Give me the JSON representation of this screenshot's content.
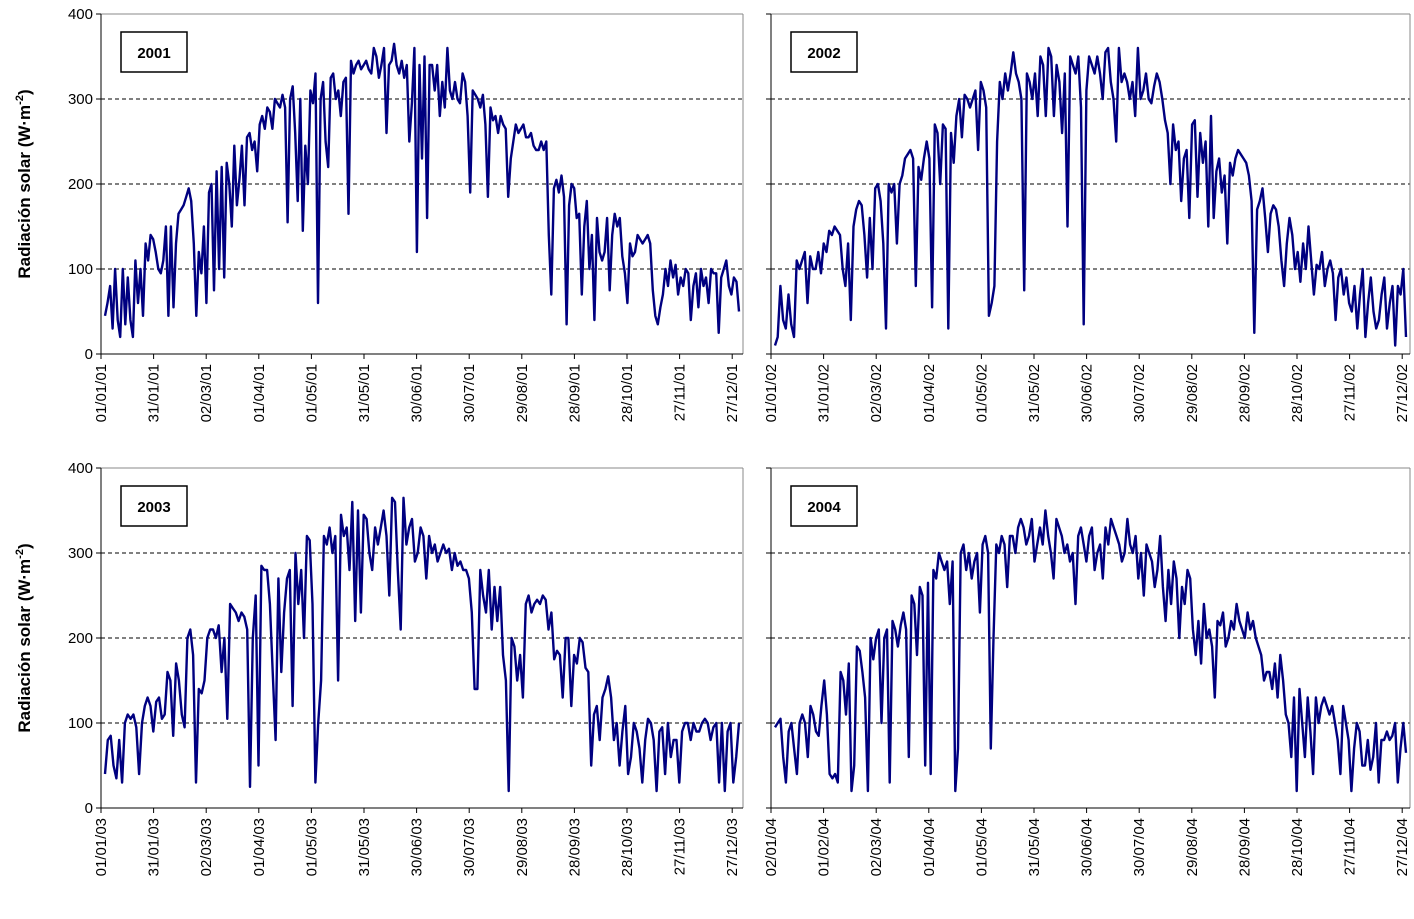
{
  "chart_data": [
    {
      "type": "line",
      "year_label": "2001",
      "ylabel": "Radiación solar (W·m",
      "ylabel_sup": "-2",
      "ylabel_close": ")",
      "ylim": [
        0,
        400
      ],
      "yticks": [
        "0",
        "100",
        "200",
        "300",
        "400"
      ],
      "x_tick_labels": [
        "01/01/01",
        "31/01/01",
        "02/03/01",
        "01/04/01",
        "01/05/01",
        "31/05/01",
        "30/06/01",
        "30/07/01",
        "29/08/01",
        "28/09/01",
        "28/10/01",
        "27/11/01",
        "27/12/01"
      ],
      "grid": "horizontal dashed",
      "series_color": "#000080",
      "series": [
        {
          "values": [
            45,
            60,
            80,
            30,
            100,
            40,
            20,
            100,
            35,
            90,
            40,
            20,
            110,
            60,
            100,
            45,
            130,
            110,
            140,
            135,
            120,
            100,
            95,
            110,
            150,
            45,
            150,
            55,
            130,
            165,
            170,
            175,
            185,
            195,
            180,
            130,
            45,
            120,
            95,
            150,
            60,
            190,
            200,
            75,
            215,
            100,
            220,
            90,
            225,
            200,
            150,
            245,
            175,
            205,
            245,
            175,
            255,
            260,
            240,
            250,
            215,
            270,
            280,
            265,
            290,
            285,
            265,
            300,
            295,
            290,
            305,
            290,
            155,
            300,
            315,
            260,
            180,
            300,
            145,
            245,
            200,
            310,
            295,
            330,
            60,
            300,
            320,
            250,
            220,
            325,
            330,
            300,
            310,
            280,
            320,
            325,
            165,
            345,
            330,
            340,
            345,
            335,
            340,
            345,
            335,
            330,
            360,
            350,
            325,
            340,
            360,
            260,
            340,
            345,
            365,
            340,
            330,
            345,
            325,
            340,
            250,
            295,
            360,
            120,
            340,
            230,
            350,
            160,
            340,
            340,
            310,
            340,
            280,
            320,
            290,
            360,
            310,
            300,
            320,
            300,
            295,
            330,
            320,
            280,
            190,
            310,
            305,
            300,
            290,
            305,
            270,
            185,
            290,
            275,
            280,
            260,
            280,
            270,
            265,
            185,
            230,
            250,
            270,
            260,
            265,
            270,
            255,
            255,
            260,
            245,
            240,
            240,
            250,
            240,
            250,
            140,
            70,
            195,
            205,
            190,
            210,
            185,
            35,
            175,
            200,
            195,
            160,
            165,
            70,
            150,
            180,
            100,
            140,
            40,
            160,
            120,
            110,
            120,
            160,
            75,
            140,
            165,
            150,
            160,
            115,
            95,
            60,
            130,
            115,
            120,
            140,
            135,
            130,
            135,
            140,
            130,
            75,
            45,
            35,
            55,
            70,
            100,
            80,
            110,
            90,
            105,
            70,
            90,
            80,
            100,
            95,
            40,
            80,
            95,
            55,
            100,
            80,
            90,
            60,
            100,
            95,
            95,
            25,
            90,
            100,
            110,
            80,
            70,
            90,
            85,
            50
          ]
        }
      ]
    },
    {
      "type": "line",
      "year_label": "2002",
      "ylim": [
        0,
        400
      ],
      "x_tick_labels": [
        "01/01/02",
        "31/01/02",
        "02/03/02",
        "01/04/02",
        "01/05/02",
        "31/05/02",
        "30/06/02",
        "30/07/02",
        "29/08/02",
        "28/09/02",
        "28/10/02",
        "27/11/02",
        "27/12/02"
      ],
      "grid": "horizontal dashed",
      "series_color": "#000080",
      "series": [
        {
          "values": [
            10,
            20,
            80,
            40,
            30,
            70,
            35,
            20,
            110,
            100,
            110,
            120,
            60,
            115,
            100,
            100,
            120,
            95,
            130,
            120,
            145,
            140,
            150,
            145,
            140,
            100,
            80,
            130,
            40,
            150,
            170,
            180,
            175,
            140,
            90,
            160,
            100,
            195,
            200,
            180,
            130,
            30,
            200,
            190,
            200,
            130,
            200,
            210,
            230,
            235,
            240,
            230,
            80,
            220,
            205,
            230,
            250,
            230,
            55,
            270,
            260,
            200,
            270,
            265,
            30,
            260,
            225,
            280,
            300,
            255,
            305,
            300,
            290,
            300,
            310,
            240,
            320,
            310,
            290,
            45,
            60,
            80,
            250,
            320,
            300,
            330,
            310,
            330,
            355,
            330,
            320,
            300,
            75,
            330,
            320,
            300,
            330,
            280,
            350,
            340,
            280,
            360,
            350,
            280,
            340,
            320,
            260,
            330,
            150,
            350,
            340,
            330,
            350,
            290,
            35,
            310,
            350,
            340,
            330,
            350,
            330,
            300,
            355,
            360,
            320,
            300,
            250,
            360,
            320,
            330,
            320,
            300,
            320,
            280,
            360,
            300,
            310,
            330,
            300,
            295,
            315,
            330,
            320,
            300,
            275,
            260,
            200,
            270,
            240,
            250,
            180,
            230,
            240,
            160,
            270,
            275,
            185,
            260,
            225,
            250,
            150,
            280,
            160,
            215,
            230,
            190,
            210,
            130,
            225,
            210,
            230,
            240,
            235,
            230,
            225,
            210,
            180,
            25,
            170,
            180,
            195,
            160,
            120,
            165,
            175,
            170,
            150,
            110,
            80,
            130,
            160,
            140,
            100,
            120,
            85,
            130,
            100,
            150,
            110,
            70,
            105,
            100,
            120,
            80,
            100,
            110,
            95,
            40,
            90,
            100,
            70,
            90,
            60,
            50,
            80,
            30,
            70,
            100,
            20,
            60,
            90,
            50,
            30,
            40,
            70,
            90,
            30,
            60,
            80,
            10,
            80,
            70,
            100,
            20
          ]
        }
      ]
    },
    {
      "type": "line",
      "year_label": "2003",
      "ylabel": "Radiación solar (W·m",
      "ylabel_sup": "-2",
      "ylabel_close": ")",
      "ylim": [
        0,
        400
      ],
      "yticks": [
        "0",
        "100",
        "200",
        "300",
        "400"
      ],
      "x_tick_labels": [
        "01/01/03",
        "31/01/03",
        "02/03/03",
        "01/04/03",
        "01/05/03",
        "31/05/03",
        "30/06/03",
        "30/07/03",
        "29/08/03",
        "28/09/03",
        "28/10/03",
        "27/11/03",
        "27/12/03"
      ],
      "grid": "horizontal dashed",
      "series_color": "#000080",
      "series": [
        {
          "values": [
            40,
            80,
            85,
            50,
            35,
            80,
            30,
            100,
            110,
            105,
            110,
            95,
            40,
            100,
            120,
            130,
            120,
            90,
            125,
            130,
            105,
            110,
            160,
            150,
            85,
            170,
            150,
            110,
            95,
            200,
            210,
            180,
            30,
            140,
            135,
            150,
            200,
            210,
            210,
            200,
            215,
            160,
            200,
            105,
            240,
            235,
            230,
            220,
            230,
            225,
            210,
            25,
            200,
            250,
            50,
            285,
            280,
            280,
            240,
            160,
            80,
            270,
            160,
            230,
            270,
            280,
            120,
            300,
            240,
            280,
            200,
            320,
            315,
            240,
            30,
            100,
            150,
            320,
            310,
            330,
            300,
            320,
            150,
            345,
            320,
            330,
            280,
            360,
            220,
            350,
            230,
            345,
            340,
            300,
            280,
            330,
            310,
            330,
            350,
            320,
            250,
            365,
            360,
            280,
            210,
            365,
            310,
            330,
            340,
            290,
            300,
            330,
            320,
            270,
            320,
            300,
            310,
            290,
            300,
            310,
            300,
            305,
            280,
            300,
            285,
            290,
            280,
            280,
            270,
            230,
            140,
            140,
            280,
            250,
            230,
            280,
            210,
            260,
            220,
            260,
            180,
            150,
            20,
            200,
            190,
            150,
            180,
            130,
            240,
            250,
            230,
            240,
            245,
            240,
            250,
            245,
            210,
            230,
            175,
            185,
            180,
            130,
            200,
            200,
            120,
            180,
            170,
            200,
            195,
            165,
            160,
            50,
            110,
            120,
            80,
            130,
            140,
            155,
            130,
            80,
            100,
            50,
            90,
            120,
            40,
            60,
            100,
            90,
            70,
            30,
            80,
            105,
            100,
            80,
            20,
            90,
            95,
            40,
            100,
            60,
            80,
            80,
            30,
            90,
            100,
            100,
            80,
            100,
            90,
            90,
            100,
            105,
            100,
            80,
            95,
            100,
            30,
            100,
            20,
            90,
            100,
            30,
            60,
            100
          ]
        }
      ]
    },
    {
      "type": "line",
      "year_label": "2004",
      "ylim": [
        0,
        400
      ],
      "x_tick_labels": [
        "02/01/04",
        "01/02/04",
        "02/03/04",
        "01/04/04",
        "01/05/04",
        "31/05/04",
        "30/06/04",
        "30/07/04",
        "29/08/04",
        "28/09/04",
        "28/10/04",
        "27/11/04",
        "27/12/04"
      ],
      "grid": "horizontal dashed",
      "series_color": "#000080",
      "series": [
        {
          "values": [
            95,
            100,
            105,
            60,
            30,
            90,
            100,
            70,
            40,
            100,
            110,
            100,
            60,
            120,
            110,
            90,
            85,
            120,
            150,
            110,
            40,
            35,
            40,
            30,
            160,
            150,
            110,
            170,
            20,
            50,
            190,
            185,
            160,
            130,
            20,
            200,
            175,
            200,
            210,
            100,
            200,
            210,
            30,
            220,
            210,
            190,
            215,
            230,
            210,
            60,
            250,
            240,
            180,
            260,
            250,
            50,
            265,
            40,
            280,
            270,
            300,
            290,
            280,
            290,
            240,
            290,
            20,
            70,
            300,
            310,
            280,
            300,
            270,
            290,
            300,
            230,
            310,
            320,
            300,
            70,
            200,
            310,
            300,
            320,
            310,
            260,
            320,
            320,
            300,
            330,
            340,
            330,
            310,
            320,
            340,
            290,
            310,
            330,
            310,
            350,
            320,
            300,
            270,
            340,
            330,
            320,
            300,
            310,
            290,
            300,
            240,
            320,
            330,
            310,
            290,
            320,
            330,
            280,
            300,
            310,
            270,
            330,
            310,
            340,
            330,
            320,
            310,
            290,
            300,
            340,
            310,
            300,
            320,
            270,
            300,
            250,
            310,
            300,
            290,
            260,
            280,
            320,
            260,
            220,
            280,
            240,
            290,
            270,
            200,
            260,
            240,
            280,
            270,
            210,
            180,
            220,
            170,
            240,
            200,
            210,
            190,
            130,
            220,
            215,
            230,
            190,
            200,
            220,
            210,
            240,
            220,
            210,
            200,
            230,
            210,
            220,
            200,
            190,
            180,
            150,
            160,
            160,
            140,
            170,
            130,
            180,
            150,
            110,
            100,
            60,
            130,
            20,
            140,
            100,
            60,
            130,
            90,
            40,
            130,
            100,
            120,
            130,
            120,
            110,
            120,
            100,
            80,
            40,
            120,
            100,
            80,
            20,
            70,
            100,
            90,
            50,
            50,
            80,
            45,
            60,
            100,
            30,
            80,
            80,
            90,
            80,
            85,
            100,
            30,
            70,
            100,
            65
          ]
        }
      ]
    }
  ]
}
